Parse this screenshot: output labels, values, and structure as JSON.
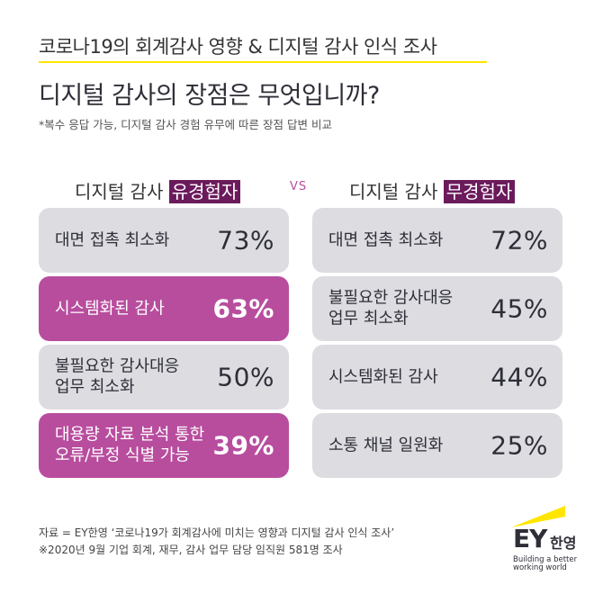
{
  "header": {
    "title": "코로나19의 회계감사 영향 & 디지털 감사 인식 조사",
    "question": "디지털 감사의 장점은 무엇입니까?",
    "note": "*복수 응답 가능, 디지털 감사 경험 유무에 따른 장점 답변 비교"
  },
  "left": {
    "head_prefix": "디지털 감사",
    "head_highlight": "유경험자",
    "items": [
      {
        "label": "대면 접촉 최소화",
        "pct": "73%",
        "highlight": false
      },
      {
        "label": "시스템화된 감사",
        "pct": "63%",
        "highlight": true
      },
      {
        "label": "불필요한 감사대응\n업무 최소화",
        "pct": "50%",
        "highlight": false
      },
      {
        "label": "대용량 자료 분석 통한\n오류/부정 식별 가능",
        "pct": "39%",
        "highlight": true
      }
    ]
  },
  "vs": "VS",
  "right": {
    "head_prefix": "디지털 감사",
    "head_highlight": "무경험자",
    "items": [
      {
        "label": "대면 접촉 최소화",
        "pct": "72%",
        "highlight": false
      },
      {
        "label": "불필요한 감사대응\n업무 최소화",
        "pct": "45%",
        "highlight": false
      },
      {
        "label": "시스템화된 감사",
        "pct": "44%",
        "highlight": false
      },
      {
        "label": "소통 채널 일원화",
        "pct": "25%",
        "highlight": false
      }
    ]
  },
  "footer": {
    "source": "자료 = EY한영 ‘코로나19가 회계감사에 미치는 영향과 디지털 감사 인식 조사’",
    "survey": "※2020년 9월 기업 회계, 재무, 감사 업무 담당 임직원 581명 조사"
  },
  "logo": {
    "mark": "EY",
    "korean": "한영",
    "tagline": "Building a better\nworking world",
    "accent": "#ffe600"
  },
  "colors": {
    "highlight": "#b84d9e",
    "head_highlight": "#6b1a5c",
    "card": "#dcdce1",
    "rule": "#ffe600"
  }
}
